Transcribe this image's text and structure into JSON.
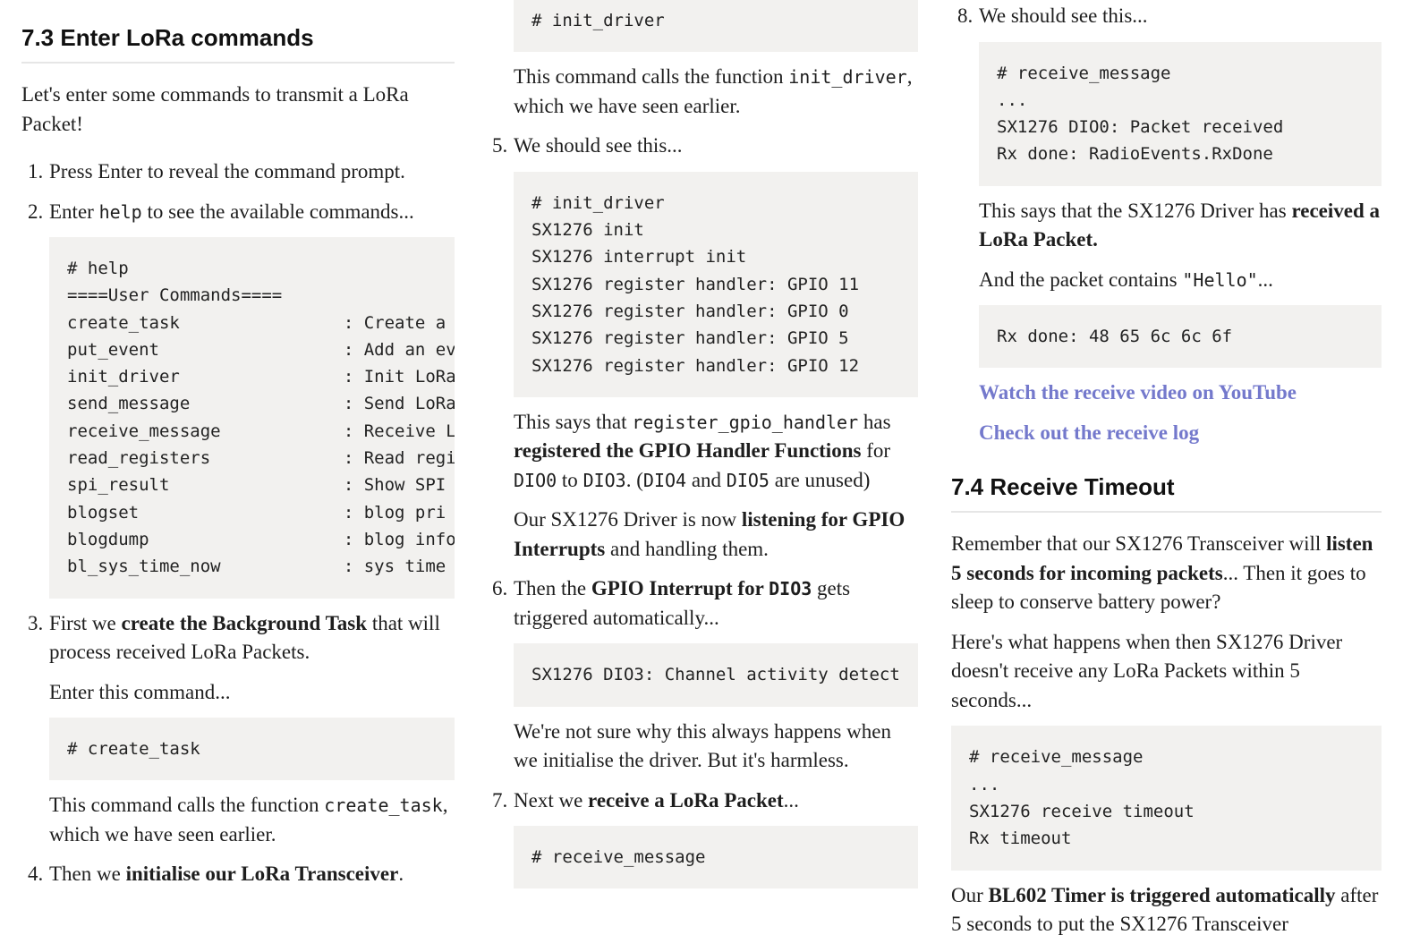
{
  "colors": {
    "link": "#7479cc",
    "code_bg": "#f2f1ef"
  },
  "columns": [
    [
      {
        "type": "h2",
        "first": true,
        "text": "7.3 Enter LoRa commands"
      },
      {
        "type": "p",
        "cls": "intro",
        "segs": [
          [
            "",
            "Let's enter some commands to transmit a LoRa Packet!"
          ]
        ]
      },
      {
        "type": "li",
        "num": "1.",
        "segs": [
          [
            "",
            "Press Enter to reveal the command prompt."
          ]
        ]
      },
      {
        "type": "li",
        "num": "2.",
        "segs": [
          [
            "",
            "Enter "
          ],
          [
            "c",
            "help"
          ],
          [
            "",
            " to see the available commands..."
          ]
        ]
      },
      {
        "type": "code",
        "ind": true,
        "lines": [
          "# help",
          "====User Commands====",
          "create_task                : Create a",
          "put_event                  : Add an ev",
          "init_driver                : Init LoRa",
          "send_message               : Send LoRa",
          "receive_message            : Receive L",
          "read_registers             : Read regi",
          "spi_result                 : Show SPI",
          "blogset                    : blog pri",
          "blogdump                   : blog info",
          "bl_sys_time_now            : sys time"
        ]
      },
      {
        "type": "li",
        "num": "3.",
        "segs": [
          [
            "",
            "First we "
          ],
          [
            "b",
            "create the Background Task"
          ],
          [
            "",
            " that will process received LoRa Packets."
          ]
        ]
      },
      {
        "type": "p",
        "ind": true,
        "segs": [
          [
            "",
            "Enter this command..."
          ]
        ]
      },
      {
        "type": "code",
        "ind": true,
        "lines": [
          "# create_task"
        ]
      },
      {
        "type": "p",
        "ind": true,
        "segs": [
          [
            "",
            "This command calls the function "
          ],
          [
            "c",
            "create_task"
          ],
          [
            "",
            ", which we have seen earlier."
          ]
        ]
      },
      {
        "type": "li",
        "num": "4.",
        "segs": [
          [
            "",
            "Then we "
          ],
          [
            "b",
            "initialise our LoRa Transceiver"
          ],
          [
            "",
            "."
          ]
        ]
      }
    ],
    [
      {
        "type": "code",
        "ind": true,
        "lines": [
          "# init_driver"
        ]
      },
      {
        "type": "p",
        "ind": true,
        "segs": [
          [
            "",
            "This command calls the function "
          ],
          [
            "c",
            "init_driver"
          ],
          [
            "",
            ", which we have seen earlier."
          ]
        ]
      },
      {
        "type": "li",
        "num": "5.",
        "segs": [
          [
            "",
            "We should see this..."
          ]
        ]
      },
      {
        "type": "code",
        "ind": true,
        "lines": [
          "# init_driver",
          "SX1276 init",
          "SX1276 interrupt init",
          "SX1276 register handler: GPIO 11",
          "SX1276 register handler: GPIO 0",
          "SX1276 register handler: GPIO 5",
          "SX1276 register handler: GPIO 12"
        ]
      },
      {
        "type": "p",
        "ind": true,
        "segs": [
          [
            "",
            "This says that "
          ],
          [
            "c",
            "register_gpio_handler"
          ],
          [
            "",
            " has "
          ],
          [
            "b",
            "registered the GPIO Handler Functions"
          ],
          [
            "",
            " for "
          ],
          [
            "c",
            "DIO0"
          ],
          [
            "",
            " to "
          ],
          [
            "c",
            "DIO3"
          ],
          [
            "",
            ". ("
          ],
          [
            "c",
            "DIO4"
          ],
          [
            "",
            " and "
          ],
          [
            "c",
            "DIO5"
          ],
          [
            "",
            " are unused)"
          ]
        ]
      },
      {
        "type": "p",
        "ind": true,
        "segs": [
          [
            "",
            "Our SX1276 Driver is now "
          ],
          [
            "b",
            "listening for GPIO Interrupts"
          ],
          [
            "",
            " and handling them."
          ]
        ]
      },
      {
        "type": "li",
        "num": "6.",
        "segs": [
          [
            "",
            "Then the "
          ],
          [
            "b",
            "GPIO Interrupt for "
          ],
          [
            "bc",
            "DIO3"
          ],
          [
            "",
            " gets triggered automatically..."
          ]
        ]
      },
      {
        "type": "code",
        "ind": true,
        "lines": [
          "SX1276 DIO3: Channel activity detect"
        ]
      },
      {
        "type": "p",
        "ind": true,
        "segs": [
          [
            "",
            "We're not sure why this always happens when we initialise the driver. But it's harmless."
          ]
        ]
      },
      {
        "type": "li",
        "num": "7.",
        "segs": [
          [
            "",
            "Next we "
          ],
          [
            "b",
            "receive a LoRa Packet"
          ],
          [
            "",
            "..."
          ]
        ]
      },
      {
        "type": "code",
        "ind": true,
        "lines": [
          "# receive_message"
        ]
      }
    ],
    [
      {
        "type": "li",
        "num": "8.",
        "segs": [
          [
            "",
            "We should see this..."
          ]
        ]
      },
      {
        "type": "code",
        "ind": true,
        "lines": [
          "# receive_message",
          "...",
          "SX1276 DIO0: Packet received",
          "Rx done: RadioEvents.RxDone"
        ]
      },
      {
        "type": "p",
        "ind": true,
        "segs": [
          [
            "",
            "This says that the SX1276 Driver has "
          ],
          [
            "b",
            "received a LoRa Packet."
          ]
        ]
      },
      {
        "type": "p",
        "ind": true,
        "segs": [
          [
            "",
            "And the packet contains "
          ],
          [
            "c",
            "\"Hello\""
          ],
          [
            "",
            "..."
          ]
        ]
      },
      {
        "type": "code",
        "ind": true,
        "lines": [
          "Rx done: 48 65 6c 6c 6f"
        ]
      },
      {
        "type": "p",
        "ind": true,
        "segs": [
          [
            "a",
            "Watch the receive video on YouTube"
          ]
        ]
      },
      {
        "type": "p",
        "ind": true,
        "segs": [
          [
            "a",
            "Check out the receive log"
          ]
        ]
      },
      {
        "type": "h2",
        "text": "7.4 Receive Timeout"
      },
      {
        "type": "p",
        "segs": [
          [
            "",
            "Remember that our SX1276 Transceiver will "
          ],
          [
            "b",
            "listen 5 seconds for incoming packets"
          ],
          [
            "",
            "... Then it goes to sleep to conserve battery power?"
          ]
        ]
      },
      {
        "type": "p",
        "segs": [
          [
            "",
            "Here's what happens when then SX1276 Driver doesn't receive any LoRa Packets within 5 seconds..."
          ]
        ]
      },
      {
        "type": "code",
        "lines": [
          "# receive_message",
          "...",
          "SX1276 receive timeout",
          "Rx timeout"
        ]
      },
      {
        "type": "p",
        "segs": [
          [
            "",
            "Our "
          ],
          [
            "b",
            "BL602 Timer is triggered automatically"
          ],
          [
            "",
            " after 5 seconds to put the SX1276 Transceiver"
          ]
        ]
      }
    ]
  ]
}
